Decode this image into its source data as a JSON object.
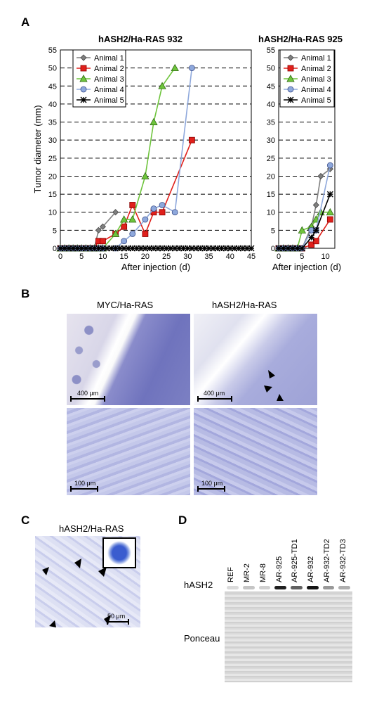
{
  "panels": {
    "a": "A",
    "b": "B",
    "c": "C",
    "d": "D"
  },
  "chart_data": [
    {
      "type": "line",
      "title": "hASH2/Ha-RAS 932",
      "xlabel": "After injection (d)",
      "ylabel": "Tumor diameter (mm)",
      "xlim": [
        0,
        45
      ],
      "ylim": [
        0,
        55
      ],
      "xticks": [
        0,
        5,
        10,
        15,
        20,
        25,
        30,
        35,
        40,
        45
      ],
      "yticks": [
        0,
        5,
        10,
        15,
        20,
        25,
        30,
        35,
        40,
        45,
        50,
        55
      ],
      "grid": "horizontal dashed",
      "legend": "top-left",
      "series": [
        {
          "name": "Animal 1",
          "marker": "diamond",
          "color": "#7f7f7f",
          "x": [
            0,
            1,
            2,
            3,
            4,
            5,
            6,
            7,
            8,
            9,
            10,
            13
          ],
          "y": [
            0,
            0,
            0,
            0,
            0,
            0,
            0,
            0,
            0,
            5,
            6,
            10
          ]
        },
        {
          "name": "Animal 2",
          "marker": "square",
          "color": "#e0201b",
          "x": [
            0,
            1,
            2,
            3,
            4,
            5,
            6,
            7,
            8,
            9,
            10,
            13,
            15,
            17,
            20,
            22,
            24,
            31
          ],
          "y": [
            0,
            0,
            0,
            0,
            0,
            0,
            0,
            0,
            0,
            2,
            2,
            4,
            6,
            12,
            4,
            10,
            10,
            30
          ]
        },
        {
          "name": "Animal 3",
          "marker": "triangle",
          "color": "#6ec43c",
          "x": [
            0,
            1,
            2,
            3,
            4,
            5,
            6,
            7,
            8,
            9,
            10,
            13,
            15,
            17,
            20,
            22,
            24,
            27
          ],
          "y": [
            0,
            0,
            0,
            0,
            0,
            0,
            0,
            0,
            0,
            0,
            0,
            4,
            8,
            8,
            20,
            35,
            45,
            50
          ]
        },
        {
          "name": "Animal 4",
          "marker": "circle",
          "color": "#8ea8dc",
          "x": [
            0,
            1,
            2,
            3,
            4,
            5,
            6,
            7,
            8,
            9,
            10,
            13,
            15,
            17,
            20,
            22,
            24,
            27,
            31
          ],
          "y": [
            0,
            0,
            0,
            0,
            0,
            0,
            0,
            0,
            0,
            0,
            0,
            0,
            2,
            4,
            8,
            11,
            12,
            10,
            50
          ]
        },
        {
          "name": "Animal 5",
          "marker": "star",
          "color": "#000000",
          "x": [
            0,
            1,
            2,
            3,
            4,
            5,
            6,
            7,
            8,
            9,
            10,
            11,
            12,
            13,
            14,
            15,
            16,
            17,
            18,
            19,
            20,
            21,
            22,
            23,
            24,
            25,
            26,
            27,
            28,
            29,
            30,
            31,
            32,
            33,
            34,
            35,
            36,
            37,
            38,
            39,
            40,
            41,
            42,
            43,
            44,
            45
          ],
          "y": [
            0,
            0,
            0,
            0,
            0,
            0,
            0,
            0,
            0,
            0,
            0,
            0,
            0,
            0,
            0,
            0,
            0,
            0,
            0,
            0,
            0,
            0,
            0,
            0,
            0,
            0,
            0,
            0,
            0,
            0,
            0,
            0,
            0,
            0,
            0,
            0,
            0,
            0,
            0,
            0,
            0,
            0,
            0,
            0,
            0,
            0
          ]
        }
      ]
    },
    {
      "type": "line",
      "title": "hASH2/Ha-RAS 925",
      "xlabel": "After injection (d)",
      "ylabel": "",
      "xlim": [
        0,
        12
      ],
      "ylim": [
        0,
        55
      ],
      "xticks": [
        0,
        5,
        10
      ],
      "yticks": [
        0,
        5,
        10,
        15,
        20,
        25,
        30,
        35,
        40,
        45,
        50,
        55
      ],
      "grid": "horizontal dashed",
      "legend": "top",
      "series": [
        {
          "name": "Animal 1",
          "marker": "diamond",
          "color": "#7f7f7f",
          "x": [
            0,
            1,
            2,
            3,
            4,
            5,
            7,
            8,
            9,
            11
          ],
          "y": [
            0,
            0,
            0,
            0,
            0,
            0,
            6,
            12,
            20,
            22
          ]
        },
        {
          "name": "Animal 2",
          "marker": "square",
          "color": "#e0201b",
          "x": [
            0,
            1,
            2,
            3,
            4,
            5,
            7,
            8,
            11
          ],
          "y": [
            0,
            0,
            0,
            0,
            0,
            0,
            1,
            2,
            8
          ]
        },
        {
          "name": "Animal 3",
          "marker": "triangle",
          "color": "#6ec43c",
          "x": [
            0,
            1,
            2,
            3,
            4,
            5,
            7,
            8,
            9,
            11
          ],
          "y": [
            0,
            0,
            0,
            0,
            0,
            5,
            6,
            8,
            10,
            10
          ]
        },
        {
          "name": "Animal 4",
          "marker": "circle",
          "color": "#8ea8dc",
          "x": [
            0,
            1,
            2,
            3,
            4,
            5,
            7,
            8,
            11
          ],
          "y": [
            0,
            0,
            0,
            0,
            0,
            0,
            5,
            5,
            23
          ]
        },
        {
          "name": "Animal 5",
          "marker": "star",
          "color": "#000000",
          "x": [
            0,
            1,
            2,
            3,
            4,
            5,
            7,
            8,
            11
          ],
          "y": [
            0,
            0,
            0,
            0,
            0,
            0,
            3,
            5,
            15
          ]
        }
      ]
    }
  ],
  "panel_b": {
    "left_title": "MYC/Ha-RAS",
    "right_title": "hASH2/Ha-RAS",
    "scale_top": "400 μm",
    "scale_bottom": "100 μm"
  },
  "panel_c": {
    "title": "hASH2/Ha-RAS",
    "scale": "50 μm"
  },
  "panel_d": {
    "lanes": [
      "REF",
      "MR-2",
      "MR-8",
      "AR-925",
      "AR-925-TD1",
      "AR-932",
      "AR-932-TD2",
      "AR-932-TD3"
    ],
    "band_label": "hASH2",
    "loading_label": "Ponceau",
    "band_intensity": [
      0.05,
      0.15,
      0.1,
      0.9,
      0.6,
      0.95,
      0.35,
      0.25
    ]
  },
  "colors": {
    "tissue": "#b9bfe6",
    "stain_dark": "#6b6fb8",
    "grid": "#000000"
  }
}
